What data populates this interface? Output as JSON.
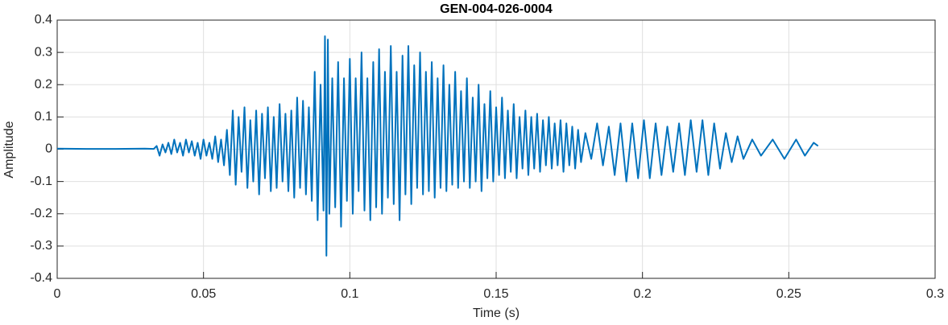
{
  "chart_data": {
    "type": "line",
    "title": "GEN-004-026-0004",
    "xlabel": "Time (s)",
    "ylabel": "Amplitude",
    "x": [
      0,
      0.01,
      0.02,
      0.03,
      0.033,
      0.034,
      0.035,
      0.036,
      0.037,
      0.038,
      0.039,
      0.04,
      0.041,
      0.042,
      0.043,
      0.044,
      0.045,
      0.046,
      0.047,
      0.048,
      0.049,
      0.05,
      0.051,
      0.052,
      0.053,
      0.054,
      0.055,
      0.056,
      0.057,
      0.058,
      0.059,
      0.06,
      0.061,
      0.062,
      0.063,
      0.064,
      0.065,
      0.066,
      0.067,
      0.068,
      0.069,
      0.07,
      0.071,
      0.072,
      0.073,
      0.074,
      0.075,
      0.076,
      0.077,
      0.078,
      0.079,
      0.08,
      0.081,
      0.082,
      0.083,
      0.084,
      0.085,
      0.086,
      0.087,
      0.088,
      0.089,
      0.09,
      0.091,
      0.0915,
      0.092,
      0.0925,
      0.093,
      0.094,
      0.095,
      0.096,
      0.097,
      0.098,
      0.099,
      0.1,
      0.101,
      0.102,
      0.103,
      0.104,
      0.105,
      0.106,
      0.107,
      0.108,
      0.109,
      0.11,
      0.111,
      0.112,
      0.113,
      0.114,
      0.115,
      0.116,
      0.117,
      0.118,
      0.119,
      0.12,
      0.121,
      0.122,
      0.123,
      0.124,
      0.125,
      0.126,
      0.127,
      0.128,
      0.129,
      0.13,
      0.131,
      0.132,
      0.133,
      0.134,
      0.135,
      0.136,
      0.137,
      0.138,
      0.139,
      0.14,
      0.141,
      0.142,
      0.143,
      0.144,
      0.145,
      0.146,
      0.147,
      0.148,
      0.149,
      0.15,
      0.151,
      0.152,
      0.153,
      0.154,
      0.155,
      0.156,
      0.157,
      0.158,
      0.159,
      0.16,
      0.161,
      0.162,
      0.163,
      0.164,
      0.165,
      0.166,
      0.167,
      0.168,
      0.169,
      0.17,
      0.171,
      0.172,
      0.173,
      0.174,
      0.175,
      0.176,
      0.177,
      0.178,
      0.179,
      0.1805,
      0.1825,
      0.1845,
      0.1865,
      0.1885,
      0.1905,
      0.1925,
      0.1945,
      0.1965,
      0.1985,
      0.2005,
      0.2025,
      0.2045,
      0.2065,
      0.2085,
      0.2105,
      0.2125,
      0.2145,
      0.2165,
      0.2185,
      0.2205,
      0.2225,
      0.2245,
      0.2265,
      0.2285,
      0.2305,
      0.2325,
      0.2345,
      0.2375,
      0.2405,
      0.2445,
      0.2485,
      0.2525,
      0.2555,
      0.2585,
      0.26
    ],
    "series": [
      {
        "color": "#0072BD",
        "values": [
          0.002,
          0.001,
          0.001,
          0.002,
          0.001,
          0.01,
          -0.02,
          0.015,
          -0.01,
          0.02,
          -0.015,
          0.03,
          -0.01,
          0.02,
          -0.02,
          0.03,
          -0.01,
          0.025,
          -0.02,
          0.02,
          -0.03,
          0.03,
          -0.02,
          0.02,
          -0.03,
          0.04,
          -0.04,
          0.03,
          -0.05,
          0.06,
          -0.08,
          0.12,
          -0.11,
          0.1,
          -0.07,
          0.13,
          -0.12,
          0.09,
          -0.1,
          0.12,
          -0.14,
          0.11,
          -0.09,
          0.13,
          -0.13,
          0.1,
          -0.12,
          0.14,
          -0.1,
          0.11,
          -0.13,
          0.12,
          -0.15,
          0.16,
          -0.12,
          0.15,
          -0.14,
          0.13,
          -0.16,
          0.24,
          -0.22,
          0.2,
          -0.19,
          0.35,
          -0.33,
          0.34,
          -0.2,
          0.22,
          -0.18,
          0.27,
          -0.24,
          0.22,
          -0.16,
          0.28,
          -0.2,
          0.22,
          -0.13,
          0.3,
          -0.19,
          0.22,
          -0.22,
          0.27,
          -0.18,
          0.31,
          -0.2,
          0.24,
          -0.15,
          0.32,
          -0.17,
          0.24,
          -0.22,
          0.29,
          -0.14,
          0.32,
          -0.17,
          0.26,
          -0.12,
          0.3,
          -0.14,
          0.24,
          -0.13,
          0.27,
          -0.15,
          0.22,
          -0.12,
          0.26,
          -0.13,
          0.2,
          -0.11,
          0.24,
          -0.12,
          0.18,
          -0.1,
          0.22,
          -0.12,
          0.16,
          -0.1,
          0.2,
          -0.13,
          0.14,
          -0.09,
          0.18,
          -0.1,
          0.13,
          -0.08,
          0.16,
          -0.09,
          0.12,
          -0.07,
          0.14,
          -0.09,
          0.1,
          -0.06,
          0.12,
          -0.08,
          0.1,
          -0.06,
          0.11,
          -0.07,
          0.09,
          -0.05,
          0.1,
          -0.06,
          0.08,
          -0.05,
          0.09,
          -0.07,
          0.08,
          -0.05,
          0.07,
          -0.06,
          0.06,
          -0.04,
          0.05,
          -0.03,
          0.08,
          -0.05,
          0.07,
          -0.08,
          0.08,
          -0.1,
          0.08,
          -0.09,
          0.09,
          -0.09,
          0.08,
          -0.08,
          0.07,
          -0.07,
          0.08,
          -0.08,
          0.09,
          -0.07,
          0.09,
          -0.08,
          0.08,
          -0.06,
          0.05,
          -0.04,
          0.04,
          -0.03,
          0.03,
          -0.02,
          0.03,
          -0.03,
          0.03,
          -0.02,
          0.02,
          0.01
        ]
      }
    ],
    "xlim": [
      0,
      0.3
    ],
    "xticks": [
      0,
      0.05,
      0.1,
      0.15,
      0.2,
      0.25,
      0.3
    ],
    "ylim": [
      -0.4,
      0.4
    ],
    "yticks": [
      -0.4,
      -0.3,
      -0.2,
      -0.1,
      0,
      0.1,
      0.2,
      0.3,
      0.4
    ],
    "grid": true
  }
}
